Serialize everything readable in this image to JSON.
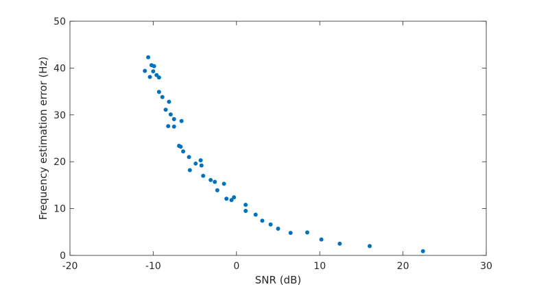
{
  "chart_data": {
    "type": "scatter",
    "title": "",
    "xlabel": "SNR (dB)",
    "ylabel": "Frequency estimation error (Hz)",
    "xlim": [
      -20,
      30
    ],
    "ylim": [
      0,
      50
    ],
    "xticks": [
      "-20",
      "-10",
      "0",
      "10",
      "20",
      "30"
    ],
    "yticks": [
      "0",
      "10",
      "20",
      "30",
      "40",
      "50"
    ],
    "grid": false,
    "marker_color": "#0072BD",
    "series": [
      {
        "points": [
          {
            "x": -10.6,
            "y": 42.3
          },
          {
            "x": -11.0,
            "y": 39.4
          },
          {
            "x": -10.2,
            "y": 40.6
          },
          {
            "x": -9.9,
            "y": 40.4
          },
          {
            "x": -10.0,
            "y": 39.3
          },
          {
            "x": -9.6,
            "y": 38.5
          },
          {
            "x": -10.4,
            "y": 38.1
          },
          {
            "x": -9.3,
            "y": 38.0
          },
          {
            "x": -9.3,
            "y": 34.9
          },
          {
            "x": -8.9,
            "y": 33.8
          },
          {
            "x": -8.1,
            "y": 32.8
          },
          {
            "x": -8.5,
            "y": 31.1
          },
          {
            "x": -7.9,
            "y": 30.1
          },
          {
            "x": -7.5,
            "y": 29.1
          },
          {
            "x": -6.6,
            "y": 28.7
          },
          {
            "x": -8.2,
            "y": 27.6
          },
          {
            "x": -7.5,
            "y": 27.5
          },
          {
            "x": -6.9,
            "y": 23.4
          },
          {
            "x": -6.7,
            "y": 23.2
          },
          {
            "x": -6.4,
            "y": 22.2
          },
          {
            "x": -5.7,
            "y": 21.0
          },
          {
            "x": -4.3,
            "y": 20.3
          },
          {
            "x": -4.9,
            "y": 19.6
          },
          {
            "x": -4.2,
            "y": 19.2
          },
          {
            "x": -5.6,
            "y": 18.2
          },
          {
            "x": -4.0,
            "y": 17.0
          },
          {
            "x": -3.1,
            "y": 16.1
          },
          {
            "x": -2.6,
            "y": 15.7
          },
          {
            "x": -1.5,
            "y": 15.3
          },
          {
            "x": -2.3,
            "y": 13.9
          },
          {
            "x": -1.2,
            "y": 12.1
          },
          {
            "x": -0.3,
            "y": 12.4
          },
          {
            "x": -0.6,
            "y": 11.8
          },
          {
            "x": 1.1,
            "y": 10.8
          },
          {
            "x": 1.1,
            "y": 9.5
          },
          {
            "x": 2.3,
            "y": 8.7
          },
          {
            "x": 3.1,
            "y": 7.4
          },
          {
            "x": 4.1,
            "y": 6.6
          },
          {
            "x": 5.0,
            "y": 5.7
          },
          {
            "x": 6.5,
            "y": 4.8
          },
          {
            "x": 8.5,
            "y": 4.9
          },
          {
            "x": 10.2,
            "y": 3.4
          },
          {
            "x": 12.4,
            "y": 2.5
          },
          {
            "x": 16.0,
            "y": 2.0
          },
          {
            "x": 22.4,
            "y": 0.9
          }
        ]
      }
    ]
  }
}
